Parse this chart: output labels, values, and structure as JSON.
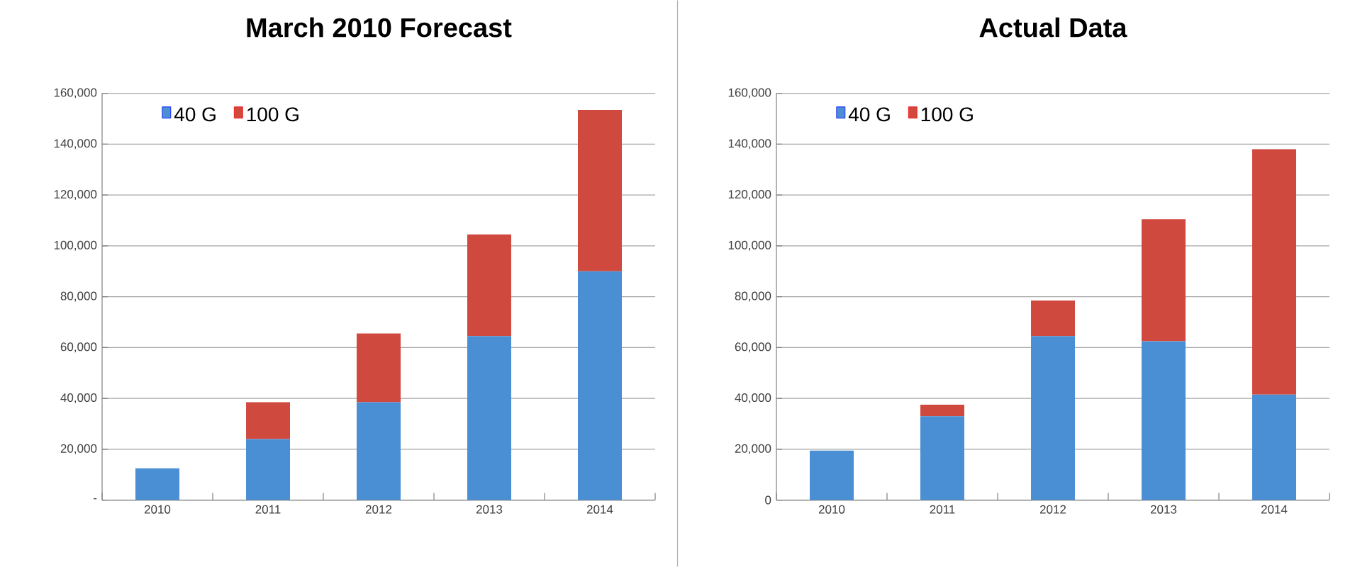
{
  "chart_data": [
    {
      "type": "bar",
      "title": "March 2010 Forecast",
      "stacked": true,
      "categories": [
        "2010",
        "2011",
        "2012",
        "2013",
        "2014"
      ],
      "series": [
        {
          "name": "40 G",
          "color": "#4a8fd4",
          "values": [
            12500,
            24000,
            38500,
            64500,
            90000
          ]
        },
        {
          "name": "100 G",
          "color": "#d0493f",
          "values": [
            0,
            14500,
            27000,
            40000,
            63500
          ]
        }
      ],
      "ylim": [
        0,
        160000
      ],
      "yticks": [
        {
          "value": 0,
          "label": "-"
        },
        {
          "value": 20000,
          "label": "20,000"
        },
        {
          "value": 40000,
          "label": "40,000"
        },
        {
          "value": 60000,
          "label": "60,000"
        },
        {
          "value": 80000,
          "label": "80,000"
        },
        {
          "value": 100000,
          "label": "100,000"
        },
        {
          "value": 120000,
          "label": "120,000"
        },
        {
          "value": 140000,
          "label": "140,000"
        },
        {
          "value": 160000,
          "label": "160,000"
        }
      ],
      "grid": "y",
      "legend": "top left"
    },
    {
      "type": "bar",
      "title": "Actual Data",
      "stacked": true,
      "categories": [
        "2010",
        "2011",
        "2012",
        "2013",
        "2014"
      ],
      "series": [
        {
          "name": "40 G",
          "color": "#4a8fd4",
          "values": [
            19500,
            33000,
            64500,
            62500,
            41500
          ]
        },
        {
          "name": "100 G",
          "color": "#d0493f",
          "values": [
            0,
            4500,
            14000,
            48000,
            96500
          ]
        }
      ],
      "ylim": [
        0,
        160000
      ],
      "yticks": [
        {
          "value": 0,
          "label": "0"
        },
        {
          "value": 20000,
          "label": "20,000"
        },
        {
          "value": 40000,
          "label": "40,000"
        },
        {
          "value": 60000,
          "label": "60,000"
        },
        {
          "value": 80000,
          "label": "80,000"
        },
        {
          "value": 100000,
          "label": "100,000"
        },
        {
          "value": 120000,
          "label": "120,000"
        },
        {
          "value": 140000,
          "label": "140,000"
        },
        {
          "value": 160000,
          "label": "160,000"
        }
      ],
      "grid": "y",
      "legend": "top left"
    }
  ]
}
